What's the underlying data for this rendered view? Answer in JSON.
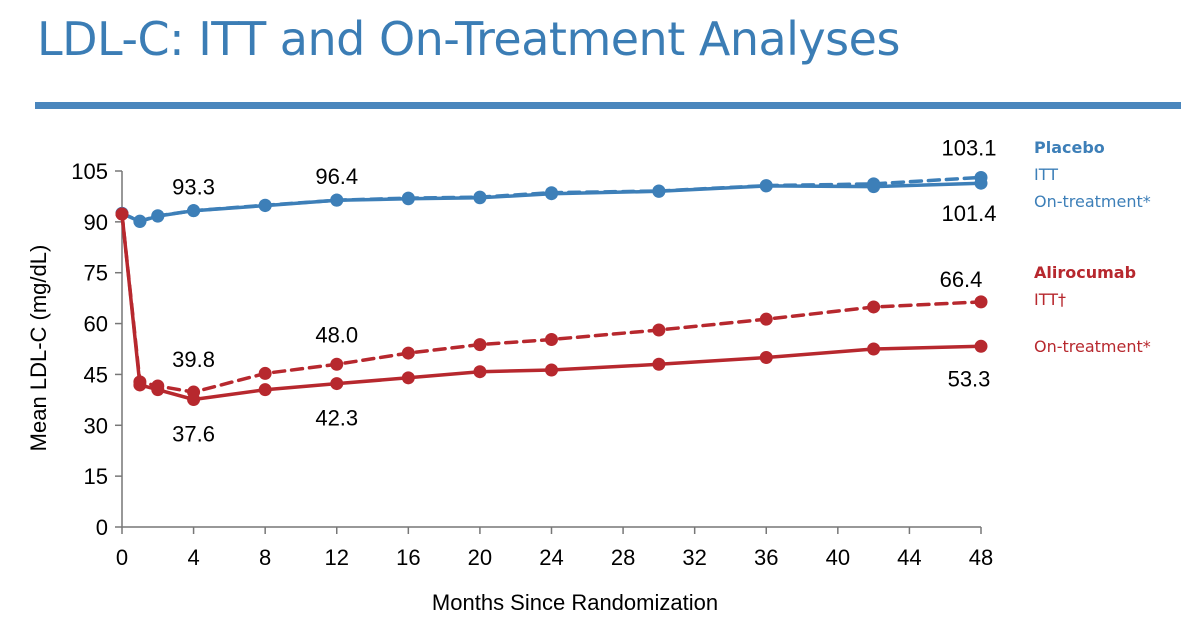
{
  "slide": {
    "title": "LDL-C: ITT and On-Treatment Analyses"
  },
  "legend": {
    "placebo_group": "Placebo",
    "placebo_itt": "ITT",
    "placebo_on": "On-treatment*",
    "aliro_group": "Alirocumab",
    "aliro_itt": "ITT†",
    "aliro_on": "On-treatment*"
  },
  "colors": {
    "placebo": "#3d7fb8",
    "alirocumab": "#b7282e",
    "title": "#3b7db5"
  },
  "chart_data": {
    "type": "line",
    "xlabel": "Months Since Randomization",
    "ylabel": "Mean LDL-C (mg/dL)",
    "xlim": [
      0,
      48
    ],
    "ylim": [
      0,
      105
    ],
    "xticks": [
      0,
      4,
      8,
      12,
      16,
      20,
      24,
      28,
      32,
      36,
      40,
      44,
      48
    ],
    "yticks": [
      0,
      15,
      30,
      45,
      60,
      75,
      90,
      105
    ],
    "grid": false,
    "series": [
      {
        "name": "Placebo ITT",
        "color": "#3d7fb8",
        "style": "dashed",
        "x": [
          0,
          1,
          2,
          4,
          8,
          12,
          16,
          20,
          24,
          30,
          36,
          42,
          48
        ],
        "values": [
          92.5,
          90.2,
          91.8,
          93.3,
          94.9,
          96.4,
          97.0,
          97.3,
          98.6,
          99.1,
          100.7,
          101.2,
          103.1
        ]
      },
      {
        "name": "Placebo On-treatment*",
        "color": "#3d7fb8",
        "style": "solid",
        "x": [
          0,
          1,
          2,
          4,
          8,
          12,
          16,
          20,
          24,
          30,
          36,
          42,
          48
        ],
        "values": [
          92.5,
          90.1,
          91.7,
          93.3,
          94.8,
          96.4,
          96.8,
          97.1,
          98.3,
          99.0,
          100.6,
          100.4,
          101.4
        ]
      },
      {
        "name": "Alirocumab ITT†",
        "color": "#b7282e",
        "style": "dashed",
        "x": [
          0,
          1,
          2,
          4,
          8,
          12,
          16,
          20,
          24,
          30,
          36,
          42,
          48
        ],
        "values": [
          92.3,
          42.8,
          41.6,
          39.8,
          45.3,
          48.0,
          51.3,
          53.8,
          55.3,
          58.1,
          61.3,
          64.9,
          66.4
        ]
      },
      {
        "name": "Alirocumab On-treatment*",
        "color": "#b7282e",
        "style": "solid",
        "x": [
          0,
          1,
          2,
          4,
          8,
          12,
          16,
          20,
          24,
          30,
          36,
          42,
          48
        ],
        "values": [
          92.3,
          41.9,
          40.5,
          37.6,
          40.5,
          42.3,
          44.0,
          45.8,
          46.3,
          48.0,
          50.0,
          52.5,
          53.3
        ]
      }
    ],
    "annotations": [
      {
        "text": "93.3",
        "x": 4,
        "y": 93.3,
        "color": "#000000"
      },
      {
        "text": "96.4",
        "x": 12,
        "y": 96.4,
        "color": "#000000"
      },
      {
        "text": "103.1",
        "x": 48,
        "y": 103.1,
        "color": "#000000"
      },
      {
        "text": "101.4",
        "x": 48,
        "y": 101.4,
        "color": "#000000"
      },
      {
        "text": "66.4",
        "x": 48,
        "y": 66.4,
        "color": "#000000"
      },
      {
        "text": "48.0",
        "x": 12,
        "y": 48.0,
        "color": "#000000"
      },
      {
        "text": "39.8",
        "x": 4,
        "y": 39.8,
        "color": "#000000"
      },
      {
        "text": "37.6",
        "x": 4,
        "y": 37.6,
        "color": "#000000"
      },
      {
        "text": "42.3",
        "x": 12,
        "y": 42.3,
        "color": "#000000"
      },
      {
        "text": "53.3",
        "x": 48,
        "y": 53.3,
        "color": "#000000"
      }
    ]
  }
}
